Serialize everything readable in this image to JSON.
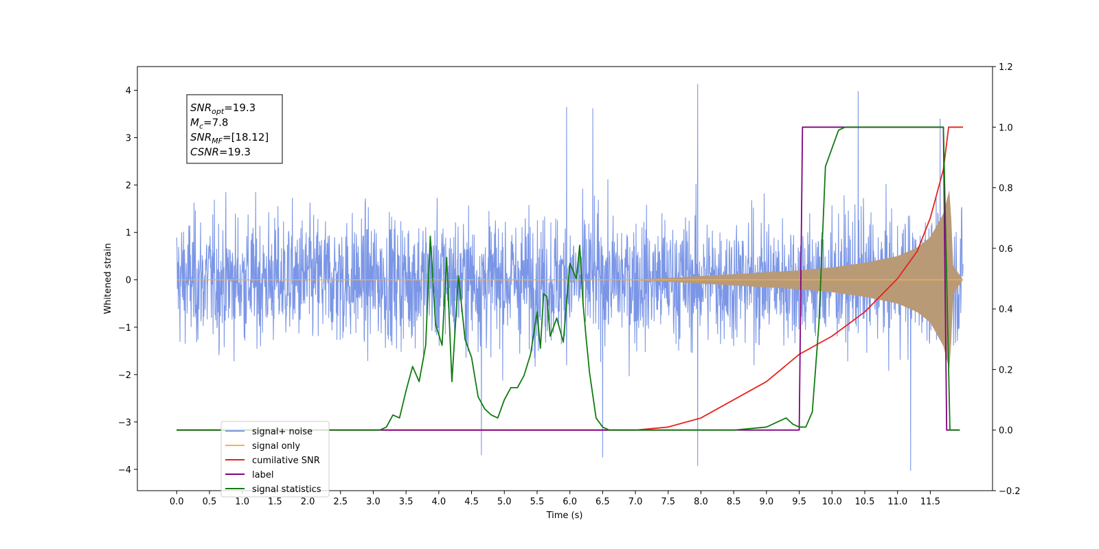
{
  "chart_data": {
    "type": "line",
    "xlabel": "Time (s)",
    "ylabel_left": "Whitened strain",
    "ylabel_right": "",
    "xlim": [
      -0.6,
      12.45
    ],
    "ylim_left": [
      -4.45,
      4.5
    ],
    "ylim_right": [
      -0.2,
      1.2
    ],
    "x_ticks": [
      0.0,
      0.5,
      1.0,
      1.5,
      2.0,
      2.5,
      3.0,
      3.5,
      4.0,
      4.5,
      5.0,
      5.5,
      6.0,
      6.5,
      7.0,
      7.5,
      8.0,
      8.5,
      9.0,
      9.5,
      10.0,
      10.5,
      11.0,
      11.5
    ],
    "x_tick_labels": [
      "0.0",
      "0.5",
      "1.0",
      "1.5",
      "2.0",
      "2.5",
      "3.0",
      "3.5",
      "4.0",
      "4.5",
      "5.0",
      "5.5",
      "6.0",
      "6.5",
      "7.0",
      "7.5",
      "8.0",
      "8.5",
      "9.0",
      "9.5",
      "10.0",
      "10.5",
      "11.0",
      "11.5"
    ],
    "y_left_ticks": [
      -4,
      -3,
      -2,
      -1,
      0,
      1,
      2,
      3,
      4
    ],
    "y_left_tick_labels": [
      "−4",
      "−3",
      "−2",
      "−1",
      "0",
      "1",
      "2",
      "3",
      "4"
    ],
    "y_right_ticks": [
      -0.2,
      0.0,
      0.2,
      0.4,
      0.6,
      0.8,
      1.0,
      1.2
    ],
    "y_right_tick_labels": [
      "−0.2",
      "0.0",
      "0.2",
      "0.4",
      "0.6",
      "0.8",
      "1.0",
      "1.2"
    ],
    "grid": false,
    "legend_position": "bottom-left",
    "annotation": {
      "lines": [
        {
          "main": "SNR",
          "sub": "opt",
          "rest": "=19.3"
        },
        {
          "main": "M",
          "sub": "c",
          "rest": "=7.8"
        },
        {
          "main": "SNR",
          "sub": "MF",
          "rest": "=[18.12]"
        },
        {
          "main": "CSNR",
          "sub": "",
          "rest": "=19.3"
        }
      ]
    },
    "series": [
      {
        "name": "signal+ noise",
        "axis": "left",
        "color": "#7b96e6",
        "kind": "noise",
        "x_range": [
          0.0,
          12.0
        ],
        "amplitude_typical": 2.5,
        "extremes": [
          {
            "x": 7.95,
            "y": 4.13
          },
          {
            "x": 7.95,
            "y": -3.93
          },
          {
            "x": 10.4,
            "y": 3.98
          },
          {
            "x": 11.2,
            "y": -4.03
          },
          {
            "x": 6.5,
            "y": -3.75
          },
          {
            "x": 4.65,
            "y": -3.7
          },
          {
            "x": 6.35,
            "y": 3.62
          },
          {
            "x": 5.95,
            "y": 3.65
          },
          {
            "x": 11.65,
            "y": 3.4
          }
        ]
      },
      {
        "name": "signal only",
        "axis": "left",
        "color": "#f5b24a",
        "kind": "chirp",
        "envelope": [
          [
            0.0,
            0.0
          ],
          [
            7.0,
            0.01
          ],
          [
            7.5,
            0.04
          ],
          [
            8.0,
            0.08
          ],
          [
            8.5,
            0.12
          ],
          [
            9.0,
            0.16
          ],
          [
            9.5,
            0.2
          ],
          [
            10.0,
            0.26
          ],
          [
            10.5,
            0.36
          ],
          [
            11.0,
            0.5
          ],
          [
            11.3,
            0.68
          ],
          [
            11.5,
            0.9
          ],
          [
            11.7,
            1.4
          ],
          [
            11.8,
            1.95
          ],
          [
            11.85,
            0.3
          ],
          [
            12.0,
            0.0
          ]
        ]
      },
      {
        "name": "cumilative SNR",
        "axis": "right",
        "color": "#e8201c",
        "kind": "line",
        "x": [
          0.0,
          7.0,
          7.5,
          8.0,
          8.5,
          9.0,
          9.5,
          10.0,
          10.5,
          11.0,
          11.3,
          11.5,
          11.7,
          11.78,
          11.9,
          12.0
        ],
        "y": [
          0.0,
          0.0,
          0.01,
          0.04,
          0.1,
          0.16,
          0.25,
          0.31,
          0.39,
          0.5,
          0.59,
          0.7,
          0.86,
          1.0,
          1.0,
          1.0
        ]
      },
      {
        "name": "label",
        "axis": "right",
        "color": "#800080",
        "kind": "line",
        "x": [
          0.0,
          9.5,
          9.55,
          11.7,
          11.75,
          11.95
        ],
        "y": [
          0.0,
          0.0,
          1.0,
          1.0,
          0.0,
          0.0
        ]
      },
      {
        "name": "signal statistics",
        "axis": "right",
        "color": "#107a10",
        "kind": "line",
        "x": [
          0.0,
          3.1,
          3.2,
          3.3,
          3.4,
          3.5,
          3.6,
          3.7,
          3.8,
          3.87,
          3.95,
          4.05,
          4.12,
          4.2,
          4.3,
          4.4,
          4.5,
          4.6,
          4.7,
          4.8,
          4.9,
          5.0,
          5.1,
          5.2,
          5.3,
          5.4,
          5.5,
          5.55,
          5.6,
          5.65,
          5.7,
          5.8,
          5.9,
          6.0,
          6.1,
          6.15,
          6.2,
          6.25,
          6.3,
          6.4,
          6.5,
          6.6,
          6.7,
          6.9,
          7.1,
          7.5,
          8.5,
          9.0,
          9.2,
          9.3,
          9.4,
          9.5,
          9.6,
          9.7,
          9.8,
          9.9,
          10.0,
          10.1,
          10.2,
          10.5,
          11.6,
          11.7,
          11.75,
          11.8,
          11.95
        ],
        "y": [
          0.0,
          0.0,
          0.01,
          0.05,
          0.04,
          0.13,
          0.21,
          0.16,
          0.28,
          0.64,
          0.35,
          0.28,
          0.57,
          0.16,
          0.51,
          0.3,
          0.24,
          0.11,
          0.07,
          0.05,
          0.04,
          0.1,
          0.14,
          0.14,
          0.18,
          0.25,
          0.39,
          0.27,
          0.45,
          0.44,
          0.31,
          0.37,
          0.29,
          0.55,
          0.5,
          0.61,
          0.42,
          0.3,
          0.19,
          0.04,
          0.01,
          0.0,
          0.0,
          0.0,
          0.0,
          0.0,
          0.0,
          0.01,
          0.03,
          0.04,
          0.02,
          0.01,
          0.01,
          0.06,
          0.35,
          0.87,
          0.93,
          0.99,
          1.0,
          1.0,
          1.0,
          1.0,
          0.5,
          0.0,
          0.0
        ]
      }
    ]
  }
}
